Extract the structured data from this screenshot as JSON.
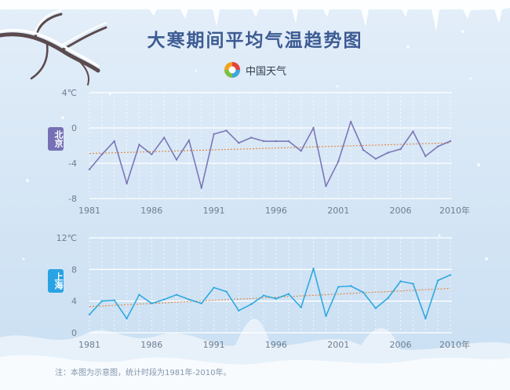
{
  "title": "大寒期间平均气温趋势图",
  "logo_text": "中国天气",
  "note": "注：本图为示意图，统计时段为1981年-2010年。",
  "colors": {
    "beijing": "#7a76b8",
    "shanghai": "#2fa8e0",
    "trend": "#e28a4a",
    "title": "#3d5b93"
  },
  "chart_data": [
    {
      "type": "line",
      "series_label": "北京",
      "unit": "℃",
      "x": [
        1981,
        1982,
        1983,
        1984,
        1985,
        1986,
        1987,
        1988,
        1989,
        1990,
        1991,
        1992,
        1993,
        1994,
        1995,
        1996,
        1997,
        1998,
        1999,
        2000,
        2001,
        2002,
        2003,
        2004,
        2005,
        2006,
        2007,
        2008,
        2009,
        2010
      ],
      "values": [
        -4.7,
        -3.0,
        -1.5,
        -6.3,
        -1.9,
        -3.0,
        -1.1,
        -3.6,
        -1.4,
        -6.8,
        -0.7,
        -0.3,
        -1.7,
        -1.1,
        -1.5,
        -1.5,
        -1.5,
        -2.6,
        0.0,
        -6.6,
        -3.8,
        0.7,
        -2.5,
        -3.5,
        -2.8,
        -2.4,
        -0.4,
        -3.2,
        -2.1,
        -1.5
      ],
      "trend": [
        -2.9,
        -1.7
      ],
      "ylim": [
        -8,
        4
      ],
      "yticks": [
        "4℃",
        "0",
        "-4",
        "-8"
      ],
      "xticks": [
        "1981",
        "1986",
        "1991",
        "1996",
        "2001",
        "2006",
        "2010年"
      ],
      "grid": true
    },
    {
      "type": "line",
      "series_label": "上海",
      "unit": "℃",
      "x": [
        1981,
        1982,
        1983,
        1984,
        1985,
        1986,
        1987,
        1988,
        1989,
        1990,
        1991,
        1992,
        1993,
        1994,
        1995,
        1996,
        1997,
        1998,
        1999,
        2000,
        2001,
        2002,
        2003,
        2004,
        2005,
        2006,
        2007,
        2008,
        2009,
        2010
      ],
      "values": [
        2.3,
        4.0,
        4.1,
        1.8,
        4.8,
        3.7,
        4.2,
        4.8,
        4.2,
        3.7,
        5.7,
        5.2,
        2.8,
        3.6,
        4.7,
        4.3,
        4.9,
        3.2,
        8.1,
        2.1,
        5.8,
        5.9,
        5.1,
        3.1,
        4.4,
        6.5,
        6.2,
        1.8,
        6.6,
        7.3
      ],
      "trend": [
        3.3,
        5.6
      ],
      "ylim": [
        0,
        12
      ],
      "yticks": [
        "12℃",
        "8",
        "4",
        "0"
      ],
      "xticks": [
        "1981",
        "1986",
        "1991",
        "1996",
        "2001",
        "2006",
        "2010年"
      ],
      "grid": true
    }
  ]
}
